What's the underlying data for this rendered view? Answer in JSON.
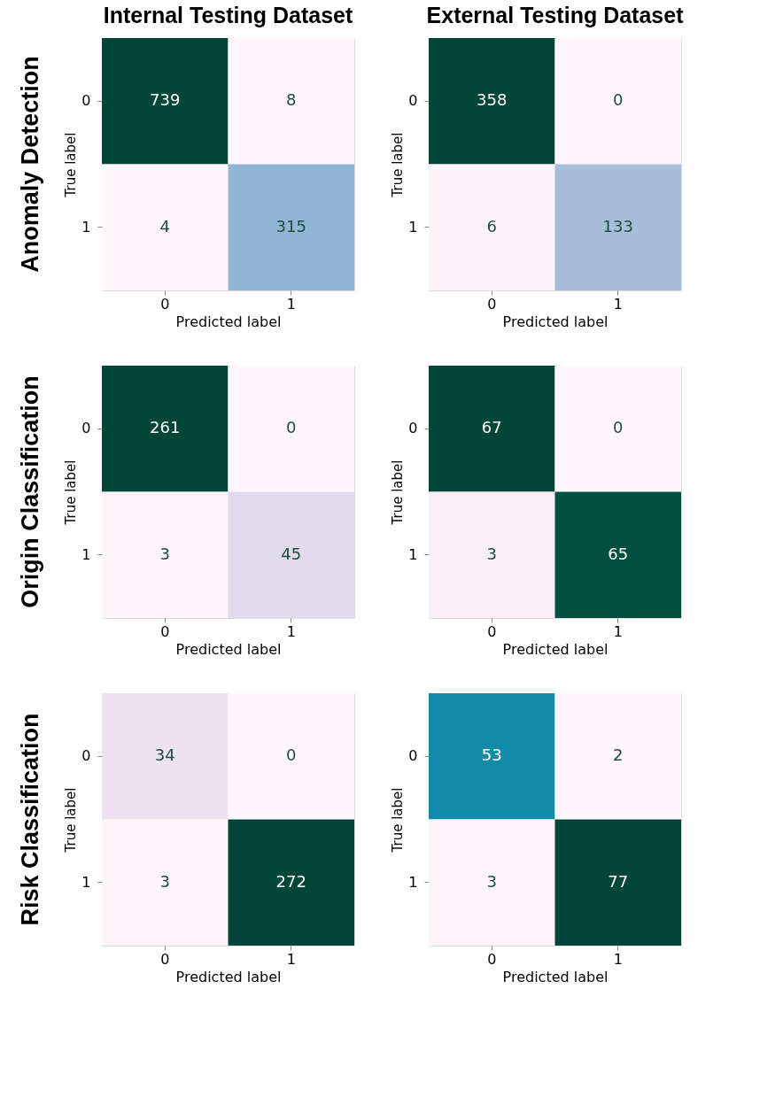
{
  "chart_data": [
    {
      "type": "heatmap",
      "title": "Internal Testing Dataset",
      "annotations": [
        "Anomaly Detection"
      ],
      "categories": [
        "0",
        "1"
      ],
      "y_categories": [
        "0",
        "1"
      ],
      "cells": [
        [
          739,
          8
        ],
        [
          4,
          315
        ]
      ],
      "data_labels": true,
      "xlabel": "Predicted label",
      "ylabel": "True label"
    },
    {
      "type": "heatmap",
      "title": "External Testing Dataset",
      "categories": [
        "0",
        "1"
      ],
      "y_categories": [
        "0",
        "1"
      ],
      "cells": [
        [
          358,
          0
        ],
        [
          6,
          133
        ]
      ],
      "data_labels": true,
      "xlabel": "Predicted label",
      "ylabel": "True label"
    },
    {
      "type": "heatmap",
      "annotations": [
        "Origin Classification"
      ],
      "categories": [
        "0",
        "1"
      ],
      "y_categories": [
        "0",
        "1"
      ],
      "cells": [
        [
          261,
          0
        ],
        [
          3,
          45
        ]
      ],
      "data_labels": true,
      "xlabel": "Predicted label",
      "ylabel": "True label"
    },
    {
      "type": "heatmap",
      "categories": [
        "0",
        "1"
      ],
      "y_categories": [
        "0",
        "1"
      ],
      "cells": [
        [
          67,
          0
        ],
        [
          3,
          65
        ]
      ],
      "data_labels": true,
      "xlabel": "Predicted label",
      "ylabel": "True label"
    },
    {
      "type": "heatmap",
      "annotations": [
        "Risk Classification"
      ],
      "categories": [
        "0",
        "1"
      ],
      "y_categories": [
        "0",
        "1"
      ],
      "cells": [
        [
          34,
          0
        ],
        [
          3,
          272
        ]
      ],
      "data_labels": true,
      "xlabel": "Predicted label",
      "ylabel": "True label"
    },
    {
      "type": "heatmap",
      "categories": [
        "0",
        "1"
      ],
      "y_categories": [
        "0",
        "1"
      ],
      "cells": [
        [
          53,
          2
        ],
        [
          3,
          77
        ]
      ],
      "data_labels": true,
      "xlabel": "Predicted label",
      "ylabel": "True label"
    }
  ]
}
